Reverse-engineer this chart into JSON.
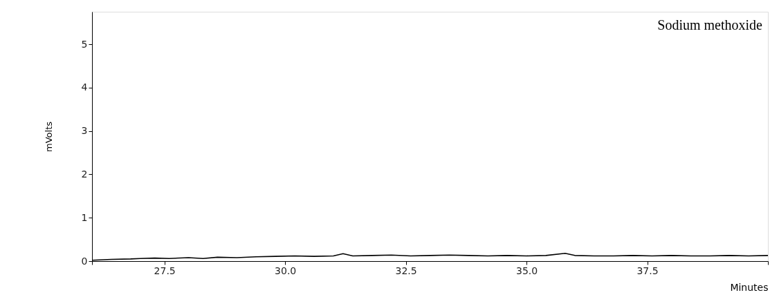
{
  "chart_data": {
    "type": "line",
    "xlabel": "Minutes",
    "ylabel": "mVolts",
    "annotations": [
      {
        "text": "Sodium methoxide"
      }
    ],
    "xlim": [
      26.0,
      40.0
    ],
    "xticks": [
      {
        "value": 26.0,
        "label": null
      },
      {
        "value": 27.5,
        "label": "27.5"
      },
      {
        "value": 30.0,
        "label": "30.0"
      },
      {
        "value": 32.5,
        "label": "32.5"
      },
      {
        "value": 35.0,
        "label": "35.0"
      },
      {
        "value": 37.5,
        "label": "37.5"
      },
      {
        "value": 40.0,
        "label": null
      }
    ],
    "ylim": [
      0,
      5.75
    ],
    "yticks": [
      0,
      1,
      2,
      3,
      4,
      5
    ],
    "grid": false,
    "marker": "none",
    "line_style": "solid",
    "series": [
      {
        "color": "#000000",
        "x": [
          26.0,
          26.4,
          26.8,
          27.0,
          27.3,
          27.6,
          28.0,
          28.3,
          28.6,
          29.0,
          29.4,
          29.8,
          30.2,
          30.6,
          31.0,
          31.2,
          31.4,
          31.8,
          32.2,
          32.6,
          33.0,
          33.4,
          33.8,
          34.2,
          34.6,
          35.0,
          35.4,
          35.8,
          36.0,
          36.4,
          36.8,
          37.2,
          37.6,
          38.0,
          38.4,
          38.8,
          39.2,
          39.6,
          40.0
        ],
        "values": [
          0.02,
          0.04,
          0.05,
          0.06,
          0.07,
          0.06,
          0.08,
          0.06,
          0.09,
          0.08,
          0.1,
          0.11,
          0.12,
          0.11,
          0.12,
          0.17,
          0.12,
          0.13,
          0.14,
          0.12,
          0.13,
          0.14,
          0.13,
          0.12,
          0.13,
          0.12,
          0.13,
          0.18,
          0.13,
          0.12,
          0.12,
          0.13,
          0.12,
          0.13,
          0.12,
          0.12,
          0.13,
          0.12,
          0.13
        ]
      }
    ]
  }
}
